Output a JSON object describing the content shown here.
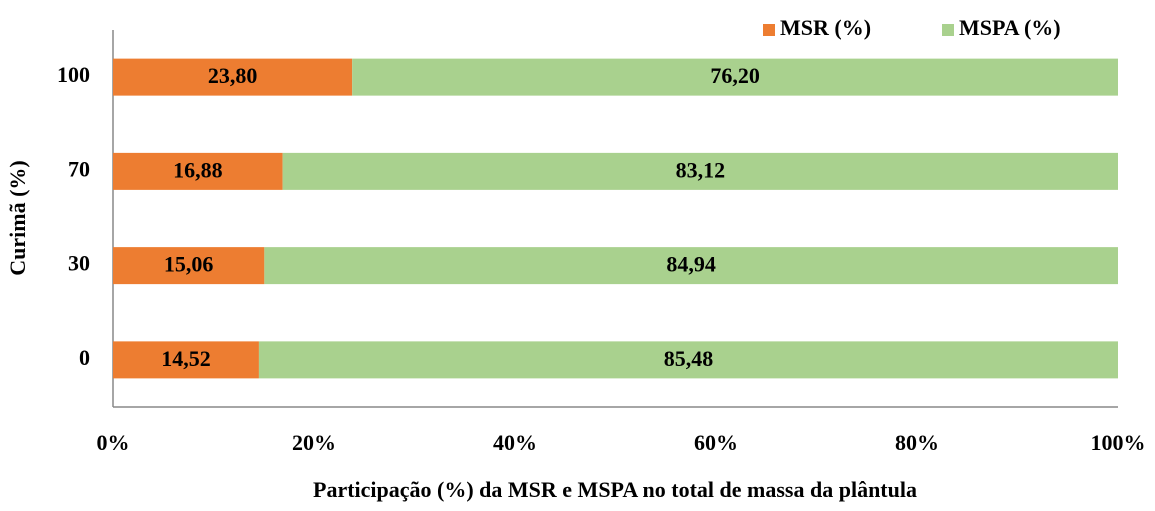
{
  "chart_data": {
    "type": "stacked_bar_horizontal",
    "x_label": "Participação (%) da MSR e MSPA no total de massa da plântula",
    "y_label": "Curimã (%)",
    "categories": [
      "0",
      "30",
      "70",
      "100"
    ],
    "series": [
      {
        "name": "MSR (%)",
        "color": "#ed7d31",
        "values": [
          14.52,
          15.06,
          16.88,
          23.8
        ],
        "value_labels": [
          "14,52",
          "15,06",
          "16,88",
          "23,80"
        ]
      },
      {
        "name": "MSPA (%)",
        "color": "#a9d18e",
        "values": [
          85.48,
          84.94,
          83.12,
          76.2
        ],
        "value_labels": [
          "85,48",
          "84,94",
          "83,12",
          "76,20"
        ]
      }
    ],
    "xlim": [
      0,
      100
    ],
    "xticks": [
      {
        "value": 0,
        "label": "0%"
      },
      {
        "value": 20,
        "label": "20%"
      },
      {
        "value": 40,
        "label": "40%"
      },
      {
        "value": 60,
        "label": "60%"
      },
      {
        "value": 80,
        "label": "80%"
      },
      {
        "value": 100,
        "label": "100%"
      }
    ],
    "legend": "top-right"
  }
}
